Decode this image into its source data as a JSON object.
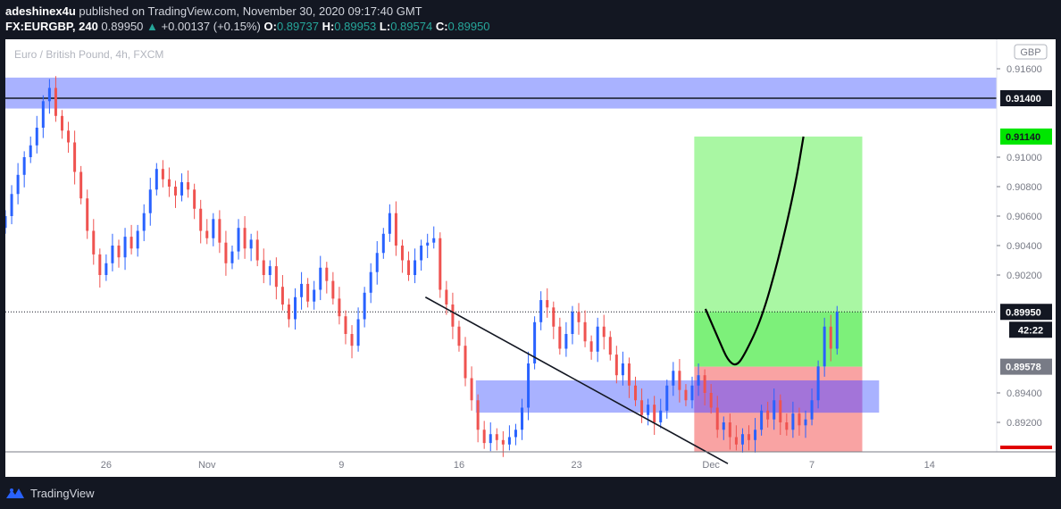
{
  "header": {
    "author": "adeshinex4u",
    "published": "published on TradingView.com, November 30, 2020 09:17:40 GMT",
    "symbol": "FX:EURGBP, 240",
    "last": "0.89950",
    "change_icon": "triangle-up-icon",
    "change": "+0.00137 (+0.15%)",
    "o_label": "O:",
    "o": "0.89737",
    "h_label": "H:",
    "h": "0.89953",
    "l_label": "L:",
    "l": "0.89574",
    "c_label": "C:",
    "c": "0.89950"
  },
  "footer": {
    "brand": "TradingView"
  },
  "colors": {
    "up": "#2962ff",
    "down": "#ef5350",
    "zone": "#9aa4ff",
    "profit": "#a9f7a3",
    "profit_active": "#7df07a",
    "stop": "#f9a3a3",
    "stop_active": "#a26fd6",
    "current": "#131722",
    "target": "#00e600"
  },
  "chart_data": {
    "type": "candlestick",
    "title": "Euro / British Pound, 4h, FXCM",
    "currency_label": "GBP",
    "ylim": [
      0.89,
      0.918
    ],
    "xlim": [
      "2020-10-20",
      "2020-12-18"
    ],
    "y_ticks": [
      "0.91600",
      "0.91000",
      "0.90800",
      "0.90600",
      "0.90400",
      "0.90200",
      "0.89400",
      "0.89200"
    ],
    "x_ticks": [
      "26",
      "Nov",
      "9",
      "16",
      "23",
      "Dec",
      "7",
      "14"
    ],
    "x_tick_dates": [
      "2020-10-26",
      "2020-11-01",
      "2020-11-09",
      "2020-11-16",
      "2020-11-23",
      "2020-12-01",
      "2020-12-07",
      "2020-12-14"
    ],
    "price_labels": [
      {
        "value": 0.914,
        "text": "0.91400",
        "style": "line"
      },
      {
        "value": 0.9114,
        "text": "0.91140",
        "style": "target"
      },
      {
        "value": 0.8995,
        "text": "0.89950",
        "style": "current"
      },
      {
        "value": 0.89578,
        "text": "0.89578",
        "style": "entry"
      }
    ],
    "countdown": "42:22",
    "resistance_zone": [
      0.9133,
      0.9154
    ],
    "resistance_line": 0.914,
    "support_zone": {
      "x": [
        "2020-11-17",
        "2020-12-11"
      ],
      "y": [
        0.89266,
        0.89485
      ]
    },
    "long_position": {
      "x": [
        "2020-11-30",
        "2020-12-10"
      ],
      "entry": 0.89578,
      "target": 0.9114,
      "stop": 0.889,
      "current": 0.8995
    },
    "trendline": {
      "x": [
        "2020-11-14",
        "2020-12-02"
      ],
      "y": [
        0.9005,
        0.8892
      ]
    },
    "projection": [
      [
        "2020-11-30T16:00",
        0.8997
      ],
      [
        "2020-12-01T12:00",
        0.8975
      ],
      [
        "2020-12-02T00:00",
        0.8962
      ],
      [
        "2020-12-02T12:00",
        0.8958
      ],
      [
        "2020-12-03T00:00",
        0.8966
      ],
      [
        "2020-12-04T00:00",
        0.899
      ],
      [
        "2020-12-05T00:00",
        0.903
      ],
      [
        "2020-12-06T00:00",
        0.908
      ],
      [
        "2020-12-06T12:00",
        0.9114
      ]
    ],
    "candles_close": [
      0.906,
      0.9075,
      0.9088,
      0.91,
      0.9108,
      0.912,
      0.9138,
      0.9147,
      0.9128,
      0.9118,
      0.911,
      0.909,
      0.9072,
      0.905,
      0.9034,
      0.902,
      0.9028,
      0.904,
      0.9032,
      0.9046,
      0.9038,
      0.905,
      0.9062,
      0.9078,
      0.9092,
      0.9085,
      0.908,
      0.9074,
      0.9083,
      0.9078,
      0.9065,
      0.905,
      0.9045,
      0.9058,
      0.9042,
      0.9028,
      0.9036,
      0.9052,
      0.9038,
      0.9044,
      0.903,
      0.902,
      0.9026,
      0.9012,
      0.9,
      0.899,
      0.9005,
      0.9014,
      0.9002,
      0.901,
      0.9025,
      0.9016,
      0.9004,
      0.8992,
      0.898,
      0.8972,
      0.899,
      0.9008,
      0.9022,
      0.9035,
      0.9048,
      0.9062,
      0.904,
      0.903,
      0.902,
      0.903,
      0.904,
      0.9042,
      0.9045,
      0.901,
      0.9,
      0.8985,
      0.8972,
      0.895,
      0.8935,
      0.8915,
      0.8906,
      0.8912,
      0.8908,
      0.8905,
      0.891,
      0.8915,
      0.893,
      0.896,
      0.8988,
      0.9003,
      0.8998,
      0.8985,
      0.897,
      0.898,
      0.8995,
      0.8988,
      0.8975,
      0.8968,
      0.8985,
      0.8978,
      0.8966,
      0.8952,
      0.896,
      0.8945,
      0.8935,
      0.8925,
      0.8932,
      0.892,
      0.8928,
      0.8945,
      0.8955,
      0.8942,
      0.8935,
      0.8945,
      0.8952,
      0.894,
      0.893,
      0.8915,
      0.892,
      0.891,
      0.8905,
      0.8912,
      0.8908,
      0.8915,
      0.8928,
      0.8922,
      0.8935,
      0.892,
      0.8915,
      0.8926,
      0.8918,
      0.8922,
      0.8935,
      0.8958,
      0.8985,
      0.897,
      0.8995
    ],
    "candles_start": "2020-10-20T00:00",
    "candle_interval_hours": 9
  }
}
